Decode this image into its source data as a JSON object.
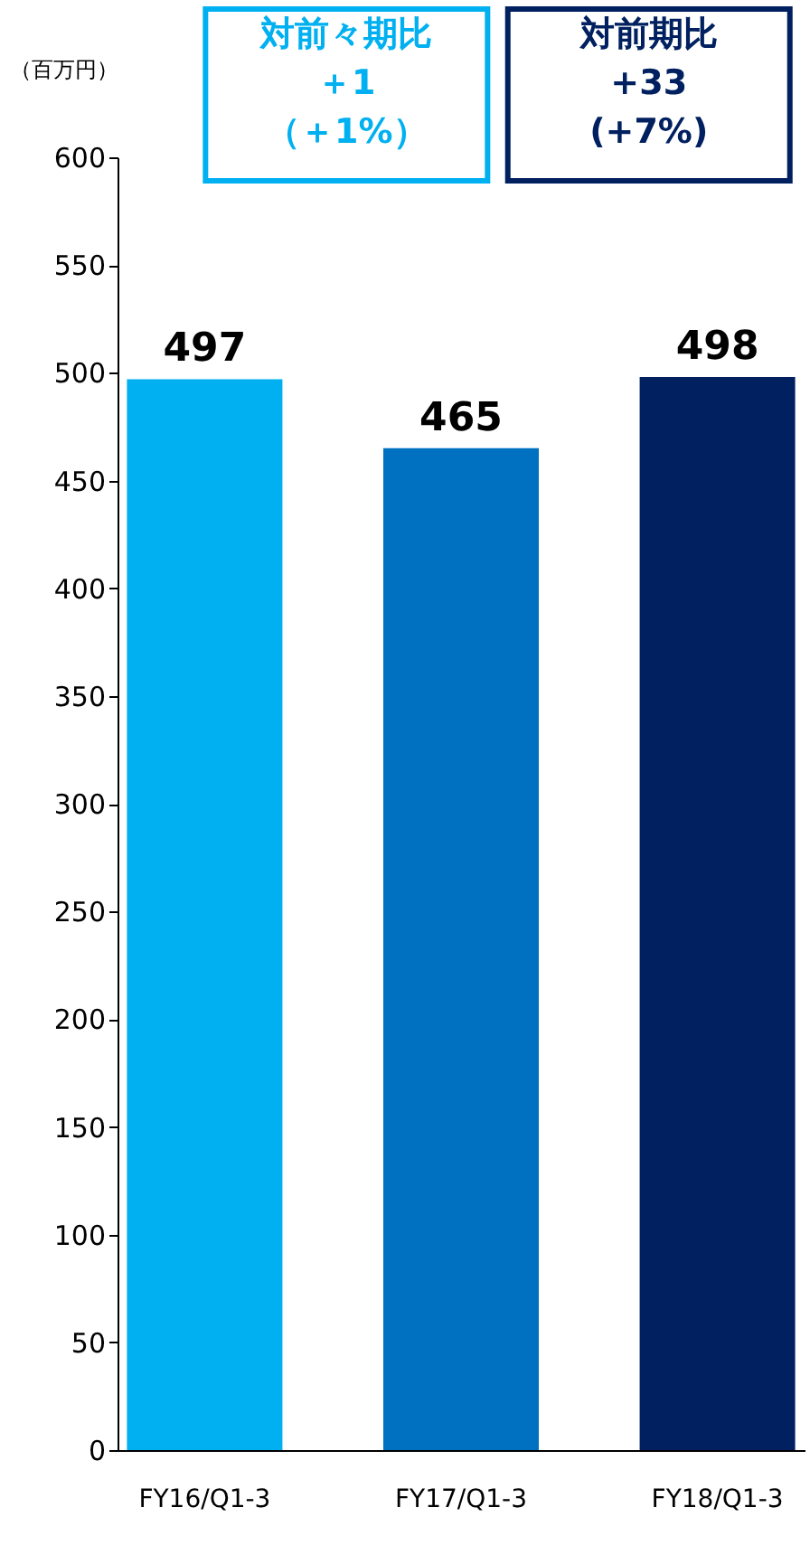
{
  "chart_data": {
    "type": "bar",
    "ylabel": "（百万円）",
    "categories": [
      "FY16/Q1-3",
      "FY17/Q1-3",
      "FY18/Q1-3"
    ],
    "values": [
      497,
      465,
      498
    ],
    "colors": [
      "#00b0f0",
      "#0070c0",
      "#002060"
    ],
    "ylim": [
      0,
      600
    ],
    "yticks": [
      0,
      50,
      100,
      150,
      200,
      250,
      300,
      350,
      400,
      450,
      500,
      550,
      600
    ],
    "data_labels": true,
    "grid": false,
    "annotations": [
      "対前々期比",
      "＋1",
      "（＋1%）",
      "対前期比",
      "+33",
      "(+7%)"
    ]
  }
}
